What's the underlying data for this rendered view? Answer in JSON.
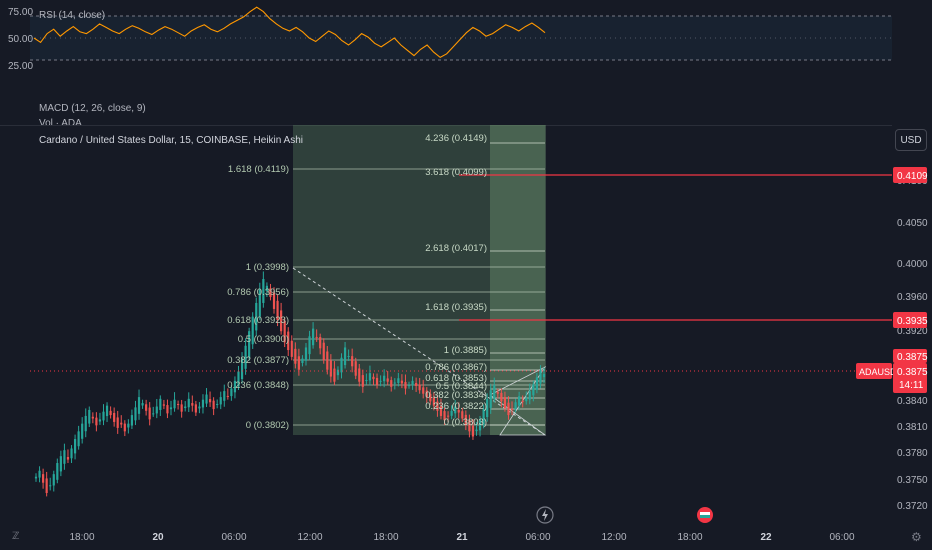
{
  "rsi": {
    "label": "RSI (14, close)",
    "level_labels": [
      "75.00",
      "50.00",
      "25.00"
    ],
    "levels": [
      75,
      50,
      25
    ],
    "values": [
      50,
      45,
      55,
      60,
      52,
      58,
      63,
      57,
      55,
      60,
      66,
      62,
      58,
      55,
      60,
      64,
      61,
      57,
      54,
      59,
      63,
      60,
      56,
      52,
      58,
      62,
      65,
      60,
      57,
      61,
      66,
      70,
      74,
      80,
      85,
      80,
      72,
      66,
      61,
      58,
      62,
      57,
      50,
      46,
      52,
      58,
      54,
      47,
      42,
      48,
      55,
      51,
      44,
      40,
      45,
      50,
      42,
      36,
      30,
      37,
      42,
      34,
      28,
      32,
      40,
      48,
      56,
      62,
      58,
      52,
      55,
      60,
      65,
      62,
      58,
      63,
      67,
      62,
      56
    ]
  },
  "macd": {
    "label": "MACD (12, 26, close, 9)"
  },
  "vol": {
    "label": "Vol · ADA"
  },
  "main": {
    "title": "Cardano / United States Dollar, 15, COINBASE, Heikin Ashi",
    "currency": "USD"
  },
  "price_axis": {
    "ticks": [
      "0.4100",
      "0.4050",
      "0.4000",
      "0.3960",
      "0.3920",
      "0.3840",
      "0.3810",
      "0.3780",
      "0.3750",
      "0.3720"
    ],
    "tag_target_top": "0.4109",
    "tag_target_mid": "0.3935",
    "tag_current_a": "0.3875",
    "tag_symbol": "ADAUSD",
    "tag_current_b": "0.3875",
    "tag_countdown": "14:11",
    "accent_color": "#f23645"
  },
  "time_axis": {
    "ticks": [
      "18:00",
      "20",
      "06:00",
      "12:00",
      "18:00",
      "21",
      "06:00",
      "12:00",
      "18:00",
      "22",
      "06:00"
    ]
  },
  "fib_retracement": {
    "levels": [
      "1.618 (0.4119)",
      "1 (0.3998)",
      "0.786 (0.3956)",
      "0.618 (0.3923)",
      "0.5 (0.3900)",
      "0.382 (0.3877)",
      "0.236 (0.3848)",
      "0 (0.3802)"
    ]
  },
  "fib_extension": {
    "levels": [
      "4.236 (0.4149)",
      "3.618 (0.4099)",
      "2.618 (0.4017)",
      "1.618 (0.3935)",
      "1 (0.3885)",
      "0.786 (0.3867)",
      "0.618 (0.3853)",
      "0.5 (0.3844)",
      "0.382 (0.3834)",
      "0.236 (0.3822)",
      "0 (0.3803)"
    ]
  },
  "chart_data": {
    "type": "candlestick",
    "title": "Cardano / United States Dollar, 15, COINBASE, Heikin Ashi",
    "symbol": "ADAUSD",
    "ylim": [
      0.3705,
      0.4155
    ],
    "colors": {
      "up": "#26a69a",
      "down": "#ef5350"
    },
    "close": [
      0.3755,
      0.3762,
      0.3748,
      0.3736,
      0.3745,
      0.3758,
      0.3771,
      0.3779,
      0.3786,
      0.3775,
      0.3788,
      0.3799,
      0.3808,
      0.3817,
      0.3826,
      0.3833,
      0.3823,
      0.3815,
      0.3822,
      0.3831,
      0.3838,
      0.3827,
      0.3819,
      0.3812,
      0.3816,
      0.3808,
      0.3817,
      0.3827,
      0.3836,
      0.3848,
      0.3841,
      0.3832,
      0.3822,
      0.3829,
      0.3837,
      0.3846,
      0.3838,
      0.3829,
      0.3836,
      0.3845,
      0.3839,
      0.3831,
      0.3837,
      0.3846,
      0.3838,
      0.383,
      0.3837,
      0.3845,
      0.3851,
      0.3842,
      0.3834,
      0.384,
      0.3848,
      0.3855,
      0.3849,
      0.3858,
      0.3867,
      0.3878,
      0.3893,
      0.3908,
      0.3925,
      0.3942,
      0.3958,
      0.3974,
      0.3986,
      0.3978,
      0.3965,
      0.3951,
      0.3938,
      0.3925,
      0.3912,
      0.3903,
      0.3895,
      0.3887,
      0.388,
      0.3893,
      0.3906,
      0.3919,
      0.3928,
      0.3918,
      0.3905,
      0.3891,
      0.388,
      0.3872,
      0.3866,
      0.388,
      0.3894,
      0.3906,
      0.3896,
      0.3884,
      0.3873,
      0.3866,
      0.386,
      0.3868,
      0.3876,
      0.3869,
      0.3862,
      0.3867,
      0.3873,
      0.3866,
      0.386,
      0.3865,
      0.387,
      0.3864,
      0.3858,
      0.3862,
      0.3867,
      0.3861,
      0.3856,
      0.3852,
      0.3848,
      0.3843,
      0.3838,
      0.3832,
      0.3826,
      0.3821,
      0.3826,
      0.3832,
      0.3837,
      0.383,
      0.3823,
      0.3815,
      0.3808,
      0.3802,
      0.381,
      0.3822,
      0.3834,
      0.3846,
      0.3856,
      0.3862,
      0.3852,
      0.3843,
      0.3835,
      0.3827,
      0.3834,
      0.3842,
      0.3849,
      0.3843,
      0.3847,
      0.3855,
      0.3863,
      0.3871,
      0.3879,
      0.3875
    ],
    "current_price": 0.3875
  }
}
